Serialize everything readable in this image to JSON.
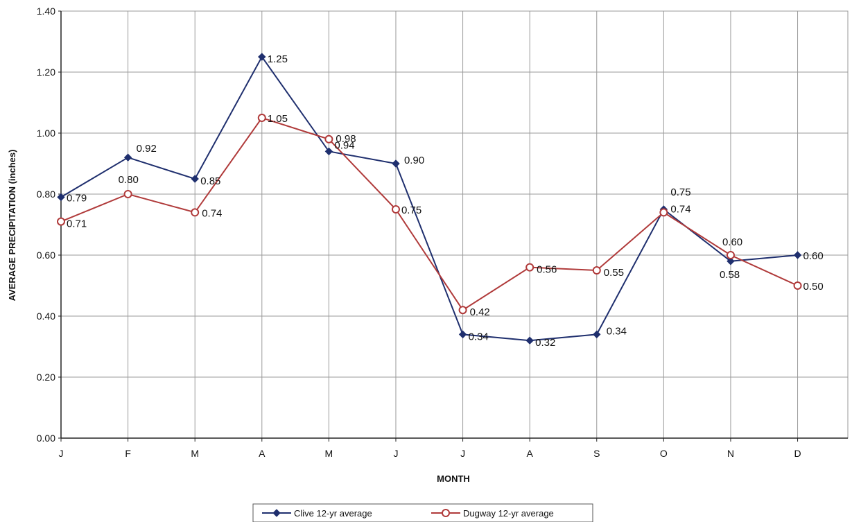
{
  "chart_data": {
    "type": "line",
    "title": "",
    "xlabel": "MONTH",
    "ylabel": "AVERAGE PRECIPITATION (inches)",
    "categories": [
      "J",
      "F",
      "M",
      "A",
      "M",
      "J",
      "J",
      "A",
      "S",
      "O",
      "N",
      "D"
    ],
    "ylim": [
      0,
      1.4
    ],
    "yticks": [
      "0.00",
      "0.20",
      "0.40",
      "0.60",
      "0.80",
      "1.00",
      "1.20",
      "1.40"
    ],
    "grid": true,
    "legend": "bottom-center",
    "series": [
      {
        "name": "Clive 12-yr average",
        "color": "#1f2f6e",
        "marker": "diamond",
        "values": [
          0.79,
          0.92,
          0.85,
          1.25,
          0.94,
          0.9,
          0.34,
          0.32,
          0.34,
          0.75,
          0.58,
          0.6
        ],
        "labels": [
          "0.79",
          "0.92",
          "0.85",
          "1.25",
          "0.94",
          "0.90",
          "0.34",
          "0.32",
          "0.34",
          "0.75",
          "0.58",
          "0.60"
        ]
      },
      {
        "name": "Dugway 12-yr average",
        "color": "#b03a3a",
        "marker": "circle",
        "values": [
          0.71,
          0.8,
          0.74,
          1.05,
          0.98,
          0.75,
          0.42,
          0.56,
          0.55,
          0.74,
          0.6,
          0.5
        ],
        "labels": [
          "0.71",
          "0.80",
          "0.74",
          "1.05",
          "0.98",
          "0.75",
          "0.42",
          "0.56",
          "0.55",
          "0.74",
          "0.60",
          "0.50"
        ]
      }
    ]
  }
}
